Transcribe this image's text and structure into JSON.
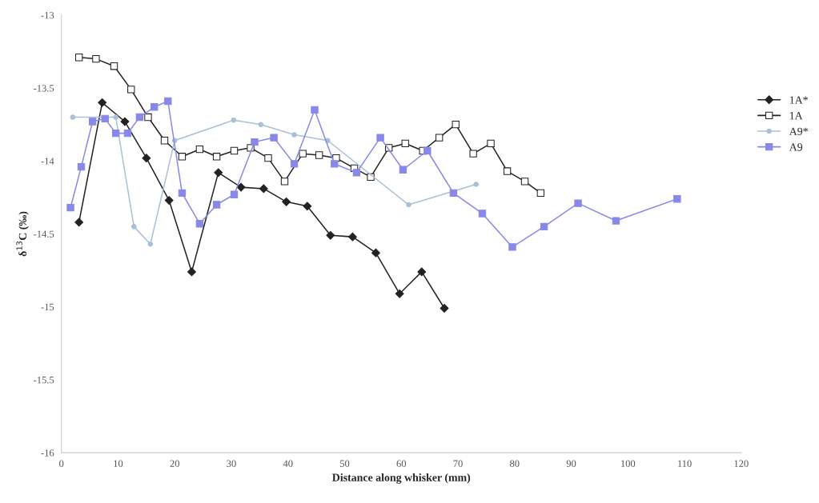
{
  "chart_data": {
    "type": "line",
    "xlabel": "Distance along whisker (mm)",
    "ylabel": "δ$^{13}$C (‰)",
    "xlim": [
      0,
      120
    ],
    "xticks": [
      0,
      10,
      20,
      30,
      40,
      50,
      60,
      70,
      80,
      90,
      100,
      110,
      120
    ],
    "ylim": [
      -16,
      -13
    ],
    "yticks": [
      -16,
      -15.5,
      -15,
      -14.5,
      -14,
      -13.5,
      -13
    ],
    "grid": false,
    "legend": "right",
    "line_style": "solid",
    "series": [
      {
        "name": "1A*",
        "color": "#222222",
        "marker": "diamond",
        "x": [
          3.1,
          7.2,
          11.2,
          15.0,
          19.0,
          23.0,
          27.7,
          31.7,
          35.7,
          39.7,
          43.4,
          47.5,
          51.4,
          55.5,
          59.7,
          63.6,
          67.6
        ],
        "values": [
          -14.42,
          -13.6,
          -13.73,
          -13.98,
          -14.27,
          -14.76,
          -14.08,
          -14.18,
          -14.19,
          -14.28,
          -14.31,
          -14.51,
          -14.52,
          -14.63,
          -14.91,
          -14.76,
          -15.01
        ]
      },
      {
        "name": "1A",
        "color": "#222222",
        "marker": "square",
        "x": [
          3.1,
          6.1,
          9.3,
          12.3,
          15.3,
          18.2,
          21.3,
          24.4,
          27.4,
          30.5,
          33.4,
          36.5,
          39.4,
          42.6,
          45.5,
          48.5,
          51.7,
          54.6,
          57.8,
          60.7,
          63.8,
          66.7,
          69.6,
          72.7,
          75.8,
          78.7,
          81.8,
          84.6
        ],
        "values": [
          -13.29,
          -13.3,
          -13.35,
          -13.51,
          -13.7,
          -13.86,
          -13.97,
          -13.92,
          -13.97,
          -13.93,
          -13.91,
          -13.98,
          -14.14,
          -13.95,
          -13.96,
          -13.98,
          -14.05,
          -14.11,
          -13.91,
          -13.88,
          -13.93,
          -13.84,
          -13.75,
          -13.95,
          -13.88,
          -14.07,
          -14.14,
          -14.22
        ]
      },
      {
        "name": "A9*",
        "color": "#a8c0d8",
        "marker": "circle",
        "x": [
          2.0,
          9.6,
          12.8,
          15.7,
          20.0,
          30.4,
          35.2,
          41.1,
          47.0,
          61.3,
          73.2
        ],
        "values": [
          -13.7,
          -13.7,
          -14.45,
          -14.57,
          -13.86,
          -13.72,
          -13.75,
          -13.82,
          -13.86,
          -14.3,
          -14.16
        ]
      },
      {
        "name": "A9",
        "color": "#8888e8",
        "marker": "square",
        "x": [
          1.6,
          3.5,
          5.5,
          7.7,
          9.6,
          11.7,
          13.8,
          16.4,
          18.8,
          21.3,
          24.4,
          27.4,
          30.5,
          34.1,
          37.5,
          41.1,
          44.7,
          48.2,
          52.1,
          56.3,
          60.3,
          64.6,
          69.2,
          74.3,
          79.6,
          85.2,
          91.2,
          97.9,
          108.7
        ],
        "values": [
          -14.32,
          -14.04,
          -13.73,
          -13.71,
          -13.81,
          -13.81,
          -13.7,
          -13.63,
          -13.59,
          -14.22,
          -14.43,
          -14.3,
          -14.23,
          -13.87,
          -13.84,
          -14.02,
          -13.65,
          -14.02,
          -14.08,
          -13.84,
          -14.06,
          -13.93,
          -14.22,
          -14.36,
          -14.59,
          -14.45,
          -14.29,
          -14.41,
          -14.26
        ]
      }
    ]
  }
}
